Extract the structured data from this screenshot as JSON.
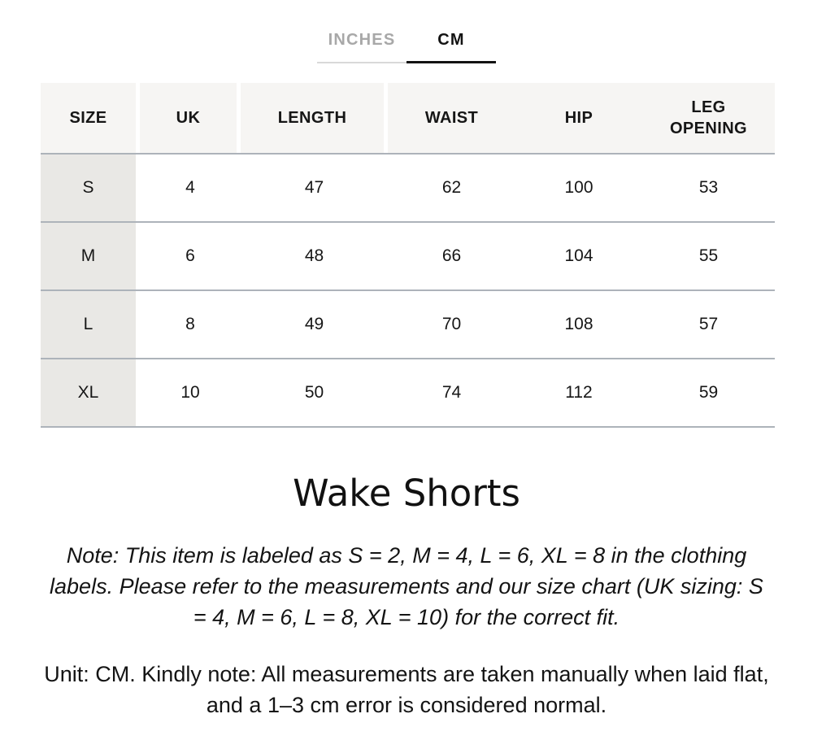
{
  "tabs": {
    "inches_label": "INCHES",
    "cm_label": "CM",
    "active_tab": "CM"
  },
  "size_table": {
    "headers": [
      "SIZE",
      "UK",
      "LENGTH",
      "WAIST",
      "HIP",
      "LEG OPENING"
    ],
    "rows": [
      {
        "size": "S",
        "uk": "4",
        "length": "47",
        "waist": "62",
        "hip": "100",
        "leg_opening": "53"
      },
      {
        "size": "M",
        "uk": "6",
        "length": "48",
        "waist": "66",
        "hip": "104",
        "leg_opening": "55"
      },
      {
        "size": "L",
        "uk": "8",
        "length": "49",
        "waist": "70",
        "hip": "108",
        "leg_opening": "57"
      },
      {
        "size": "XL",
        "uk": "10",
        "length": "50",
        "waist": "74",
        "hip": "112",
        "leg_opening": "59"
      }
    ]
  },
  "title": "Wake Shorts",
  "sizing_note": "Note: This item is labeled as S = 2, M = 4, L = 6, XL = 8 in the clothing labels. Please refer to the measurements and our size chart (UK sizing: S = 4, M = 6, L = 8, XL = 10) for the correct fit.",
  "unit_note": "Unit: CM. Kindly note: All measurements are taken manually when laid flat, and a 1–3 cm error is considered normal.",
  "colors": {
    "header_bg": "#f6f5f3",
    "size_column_bg": "#e9e8e5",
    "row_divider": "#adb3ba",
    "tab_active_text": "#131313",
    "tab_inactive_text": "#a8a8a8",
    "tab_inactive_underline": "#d9d9d9"
  }
}
